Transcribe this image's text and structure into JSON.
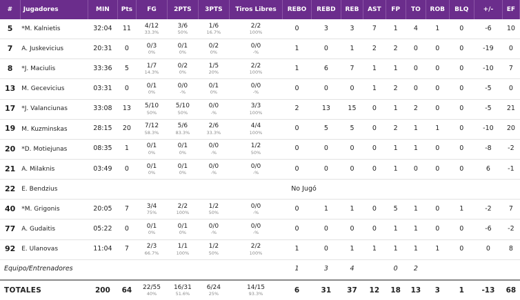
{
  "headers": [
    "#",
    "Jugadores",
    "MIN",
    "Pts",
    "FG",
    "2PTS",
    "3PTS",
    "Tiros Libres",
    "REBO",
    "REBD",
    "REB",
    "AST",
    "FP",
    "TO",
    "ROB",
    "BLQ",
    "+/-",
    "EF"
  ],
  "players": [
    {
      "num": "5",
      "name": "*M. Kalnietis",
      "min": "32:04",
      "pts": "11",
      "fg": "4/12",
      "fg_pct": "33.3%",
      "p2": "3/6",
      "p2_pct": "50%",
      "p3": "1/6",
      "p3_pct": "16.7%",
      "ft": "2/2",
      "ft_pct": "100%",
      "rebo": "0",
      "rebd": "3",
      "reb": "3",
      "ast": "7",
      "fp": "1",
      "to": "4",
      "rob": "1",
      "blq": "0",
      "pm": "-6",
      "ef": "10"
    },
    {
      "num": "7",
      "name": "A. Juskevicius",
      "min": "20:31",
      "pts": "0",
      "fg": "0/3",
      "fg_pct": "0%",
      "p2": "0/1",
      "p2_pct": "0%",
      "p3": "0/2",
      "p3_pct": "0%",
      "ft": "0/0",
      "ft_pct": "-%",
      "rebo": "1",
      "rebd": "0",
      "reb": "1",
      "ast": "2",
      "fp": "2",
      "to": "0",
      "rob": "0",
      "blq": "0",
      "pm": "-19",
      "ef": "0"
    },
    {
      "num": "8",
      "name": "*J. Maciulis",
      "min": "33:36",
      "pts": "5",
      "fg": "1/7",
      "fg_pct": "14.3%",
      "p2": "0/2",
      "p2_pct": "0%",
      "p3": "1/5",
      "p3_pct": "20%",
      "ft": "2/2",
      "ft_pct": "100%",
      "rebo": "1",
      "rebd": "6",
      "reb": "7",
      "ast": "1",
      "fp": "1",
      "to": "0",
      "rob": "0",
      "blq": "0",
      "pm": "-10",
      "ef": "7"
    },
    {
      "num": "13",
      "name": "M. Gecevicius",
      "min": "03:31",
      "pts": "0",
      "fg": "0/1",
      "fg_pct": "0%",
      "p2": "0/0",
      "p2_pct": "-%",
      "p3": "0/1",
      "p3_pct": "0%",
      "ft": "0/0",
      "ft_pct": "-%",
      "rebo": "0",
      "rebd": "0",
      "reb": "0",
      "ast": "1",
      "fp": "2",
      "to": "0",
      "rob": "0",
      "blq": "0",
      "pm": "-5",
      "ef": "0"
    },
    {
      "num": "17",
      "name": "*J. Valanciunas",
      "min": "33:08",
      "pts": "13",
      "fg": "5/10",
      "fg_pct": "50%",
      "p2": "5/10",
      "p2_pct": "50%",
      "p3": "0/0",
      "p3_pct": "-%",
      "ft": "3/3",
      "ft_pct": "100%",
      "rebo": "2",
      "rebd": "13",
      "reb": "15",
      "ast": "0",
      "fp": "1",
      "to": "2",
      "rob": "0",
      "blq": "0",
      "pm": "-5",
      "ef": "21"
    },
    {
      "num": "19",
      "name": "M. Kuzminskas",
      "min": "28:15",
      "pts": "20",
      "fg": "7/12",
      "fg_pct": "58.3%",
      "p2": "5/6",
      "p2_pct": "83.3%",
      "p3": "2/6",
      "p3_pct": "33.3%",
      "ft": "4/4",
      "ft_pct": "100%",
      "rebo": "0",
      "rebd": "5",
      "reb": "5",
      "ast": "0",
      "fp": "2",
      "to": "1",
      "rob": "1",
      "blq": "0",
      "pm": "-10",
      "ef": "20"
    },
    {
      "num": "20",
      "name": "*D. Motiejunas",
      "min": "08:35",
      "pts": "1",
      "fg": "0/1",
      "fg_pct": "0%",
      "p2": "0/1",
      "p2_pct": "0%",
      "p3": "0/0",
      "p3_pct": "-%",
      "ft": "1/2",
      "ft_pct": "50%",
      "rebo": "0",
      "rebd": "0",
      "reb": "0",
      "ast": "0",
      "fp": "1",
      "to": "1",
      "rob": "0",
      "blq": "0",
      "pm": "-8",
      "ef": "-2"
    },
    {
      "num": "21",
      "name": "A. Milaknis",
      "min": "03:49",
      "pts": "0",
      "fg": "0/1",
      "fg_pct": "0%",
      "p2": "0/1",
      "p2_pct": "0%",
      "p3": "0/0",
      "p3_pct": "-%",
      "ft": "0/0",
      "ft_pct": "-%",
      "rebo": "0",
      "rebd": "0",
      "reb": "0",
      "ast": "0",
      "fp": "1",
      "to": "0",
      "rob": "0",
      "blq": "0",
      "pm": "6",
      "ef": "-1"
    },
    {
      "num": "22",
      "name": "E. Bendzius",
      "did_not_play": "No Jugó"
    },
    {
      "num": "40",
      "name": "*M. Grigonis",
      "min": "20:05",
      "pts": "7",
      "fg": "3/4",
      "fg_pct": "75%",
      "p2": "2/2",
      "p2_pct": "100%",
      "p3": "1/2",
      "p3_pct": "50%",
      "ft": "0/0",
      "ft_pct": "-%",
      "rebo": "0",
      "rebd": "1",
      "reb": "1",
      "ast": "0",
      "fp": "5",
      "to": "1",
      "rob": "0",
      "blq": "1",
      "pm": "-2",
      "ef": "7"
    },
    {
      "num": "77",
      "name": "A. Gudaitis",
      "min": "05:22",
      "pts": "0",
      "fg": "0/1",
      "fg_pct": "0%",
      "p2": "0/1",
      "p2_pct": "0%",
      "p3": "0/0",
      "p3_pct": "-%",
      "ft": "0/0",
      "ft_pct": "-%",
      "rebo": "0",
      "rebd": "0",
      "reb": "0",
      "ast": "0",
      "fp": "1",
      "to": "1",
      "rob": "0",
      "blq": "0",
      "pm": "-6",
      "ef": "-2"
    },
    {
      "num": "92",
      "name": "E. Ulanovas",
      "min": "11:04",
      "pts": "7",
      "fg": "2/3",
      "fg_pct": "66.7%",
      "p2": "1/1",
      "p2_pct": "100%",
      "p3": "1/2",
      "p3_pct": "50%",
      "ft": "2/2",
      "ft_pct": "100%",
      "rebo": "1",
      "rebd": "0",
      "reb": "1",
      "ast": "1",
      "fp": "1",
      "to": "1",
      "rob": "1",
      "blq": "0",
      "pm": "0",
      "ef": "8"
    }
  ],
  "team_row": {
    "label": "Equipo/Entrenadores",
    "rebo": "1",
    "rebd": "3",
    "reb": "4",
    "fp": "0",
    "to": "2"
  },
  "totals": {
    "label": "TOTALES",
    "min": "200",
    "pts": "64",
    "fg": "22/55",
    "fg_pct": "40%",
    "p2": "16/31",
    "p2_pct": "51.6%",
    "p3": "6/24",
    "p3_pct": "25%",
    "ft": "14/15",
    "ft_pct": "93.3%",
    "rebo": "6",
    "rebd": "31",
    "reb": "37",
    "ast": "12",
    "fp": "18",
    "to": "13",
    "rob": "3",
    "blq": "1",
    "pm": "-13",
    "ef": "68"
  },
  "colors": {
    "header_bg": "#6b2d8c",
    "header_text": "#ffffff",
    "pct_text": "#8a8a8a"
  }
}
